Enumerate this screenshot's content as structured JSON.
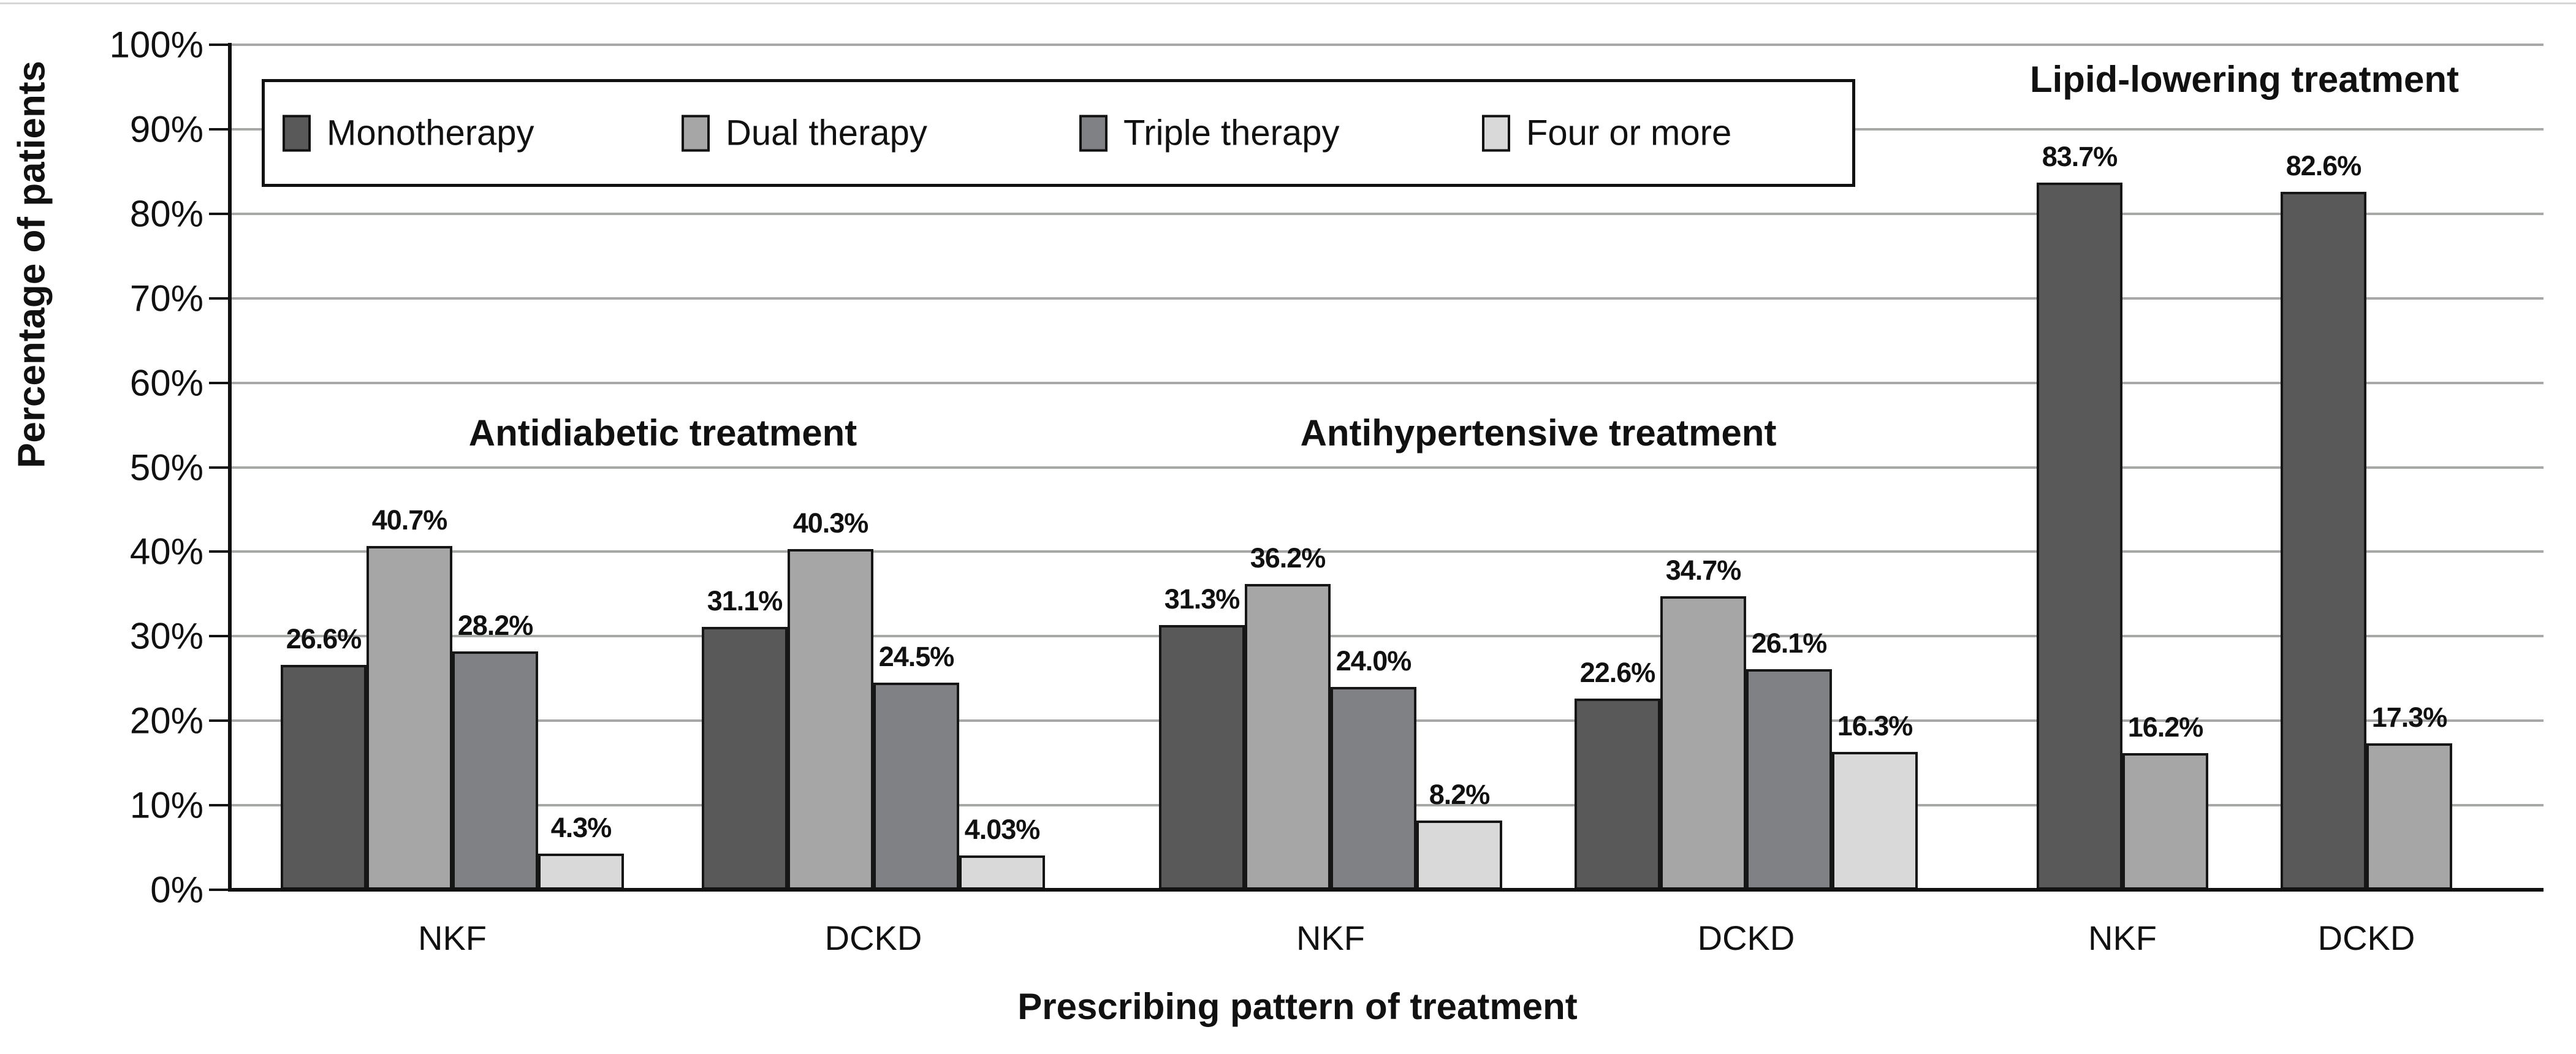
{
  "chart_data": {
    "type": "bar",
    "ylabel": "Percentage of patients",
    "xlabel": "Prescribing pattern of treatment",
    "ylim": [
      0,
      100
    ],
    "grid": true,
    "legend_position": "top",
    "y_tick_labels": [
      "0%",
      "10%",
      "20%",
      "30%",
      "40%",
      "50%",
      "60%",
      "70%",
      "80%",
      "90%",
      "100%"
    ],
    "gridline_color": "#a7a9a7",
    "axis_color": "#111111",
    "series_legend": [
      {
        "name": "Monotherapy",
        "color": "#595959"
      },
      {
        "name": "Dual therapy",
        "color": "#a6a6a6"
      },
      {
        "name": "Triple therapy",
        "color": "#7f8184"
      },
      {
        "name": "Four or more",
        "color": "#d9d9d9"
      }
    ],
    "treatment_sections": [
      {
        "title": "Antidiabetic treatment",
        "groups": [
          {
            "category": "NKF",
            "bars": [
              {
                "series": "Monotherapy",
                "value": 26.6,
                "label": "26.6%"
              },
              {
                "series": "Dual therapy",
                "value": 40.7,
                "label": "40.7%"
              },
              {
                "series": "Triple therapy",
                "value": 28.2,
                "label": "28.2%"
              },
              {
                "series": "Four or more",
                "value": 4.3,
                "label": "4.3%"
              }
            ]
          },
          {
            "category": "DCKD",
            "bars": [
              {
                "series": "Monotherapy",
                "value": 31.1,
                "label": "31.1%"
              },
              {
                "series": "Dual therapy",
                "value": 40.3,
                "label": "40.3%"
              },
              {
                "series": "Triple therapy",
                "value": 24.5,
                "label": "24.5%"
              },
              {
                "series": "Four or more",
                "value": 4.03,
                "label": "4.03%"
              }
            ]
          }
        ]
      },
      {
        "title": "Antihypertensive treatment",
        "groups": [
          {
            "category": "NKF",
            "bars": [
              {
                "series": "Monotherapy",
                "value": 31.3,
                "label": "31.3%"
              },
              {
                "series": "Dual therapy",
                "value": 36.2,
                "label": "36.2%"
              },
              {
                "series": "Triple therapy",
                "value": 24.0,
                "label": "24.0%"
              },
              {
                "series": "Four or more",
                "value": 8.2,
                "label": "8.2%"
              }
            ]
          },
          {
            "category": "DCKD",
            "bars": [
              {
                "series": "Monotherapy",
                "value": 22.6,
                "label": "22.6%"
              },
              {
                "series": "Dual therapy",
                "value": 34.7,
                "label": "34.7%"
              },
              {
                "series": "Triple therapy",
                "value": 26.1,
                "label": "26.1%"
              },
              {
                "series": "Four or more",
                "value": 16.3,
                "label": "16.3%"
              }
            ]
          }
        ]
      },
      {
        "title": "Lipid-lowering treatment",
        "groups": [
          {
            "category": "NKF",
            "bars": [
              {
                "series": "Monotherapy",
                "value": 83.7,
                "label": "83.7%"
              },
              {
                "series": "Dual therapy",
                "value": 16.2,
                "label": "16.2%"
              }
            ]
          },
          {
            "category": "DCKD",
            "bars": [
              {
                "series": "Monotherapy",
                "value": 82.6,
                "label": "82.6%"
              },
              {
                "series": "Dual therapy",
                "value": 17.3,
                "label": "17.3%"
              }
            ]
          }
        ]
      }
    ]
  }
}
